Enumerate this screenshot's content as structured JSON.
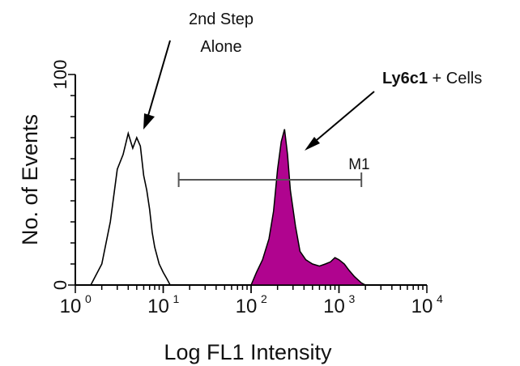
{
  "chart_data": {
    "type": "area",
    "xlabel": "Log FL1 Intensity",
    "ylabel": "No. of Events",
    "x_scale": "log",
    "xlim": [
      1,
      10000
    ],
    "ylim": [
      0,
      100
    ],
    "x_ticks": [
      {
        "value": 1,
        "base": "10",
        "exp": "0"
      },
      {
        "value": 10,
        "base": "10",
        "exp": "1"
      },
      {
        "value": 100,
        "base": "10",
        "exp": "2"
      },
      {
        "value": 1000,
        "base": "10",
        "exp": "3"
      },
      {
        "value": 10000,
        "base": "10",
        "exp": "4"
      }
    ],
    "y_ticks": [
      {
        "value": 0,
        "label": "0"
      },
      {
        "value": 100,
        "label": "100"
      }
    ],
    "series": [
      {
        "name": "2nd Step Alone",
        "style": "outline",
        "color": "#000000",
        "x": [
          1.5,
          2.0,
          2.5,
          3.0,
          3.5,
          4.0,
          4.5,
          5.0,
          5.5,
          6.0,
          6.5,
          7.0,
          7.5,
          8.0,
          9.0,
          10.0,
          11.0,
          12.0
        ],
        "y": [
          0,
          10,
          30,
          55,
          62,
          72,
          65,
          70,
          66,
          52,
          45,
          36,
          25,
          18,
          10,
          6,
          3,
          0
        ]
      },
      {
        "name": "Ly6c1+ Cells",
        "style": "filled",
        "color": "#b0048f",
        "x": [
          100,
          115,
          135,
          160,
          180,
          200,
          220,
          240,
          260,
          280,
          320,
          360,
          420,
          500,
          600,
          700,
          800,
          900,
          1000,
          1150,
          1300,
          1500,
          1800,
          2000
        ],
        "y": [
          0,
          6,
          12,
          22,
          35,
          55,
          68,
          74,
          62,
          45,
          28,
          16,
          12,
          10,
          9,
          10,
          11,
          13,
          12,
          10,
          7,
          4,
          1,
          0
        ]
      }
    ],
    "marker": {
      "label": "M1",
      "x_start": 15,
      "x_end": 1800,
      "y": 50
    },
    "annotations": [
      {
        "text_lines": [
          "2nd Step",
          "Alone"
        ],
        "points_to": "2nd Step Alone"
      },
      {
        "bold": "Ly6c1",
        "rest": " + Cells",
        "points_to": "Ly6c1+ Cells"
      }
    ]
  }
}
